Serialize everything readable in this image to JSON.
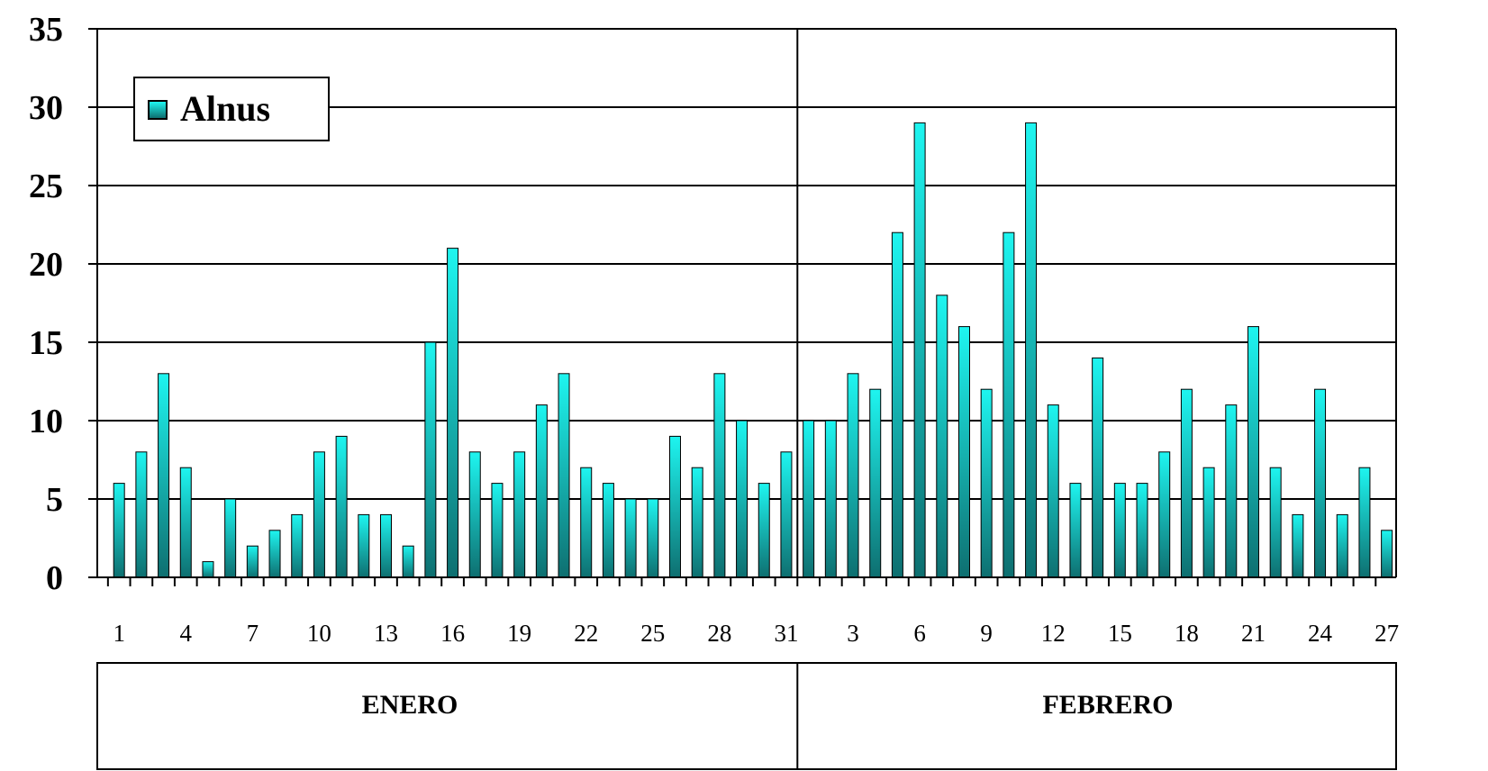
{
  "chart_data": {
    "type": "bar",
    "title": "",
    "xlabel": "",
    "ylabel": "",
    "ylim": [
      0,
      35
    ],
    "yticks": [
      0,
      5,
      10,
      15,
      20,
      25,
      30,
      35
    ],
    "grid": true,
    "legend_position": "top-left",
    "series": [
      {
        "name": "Alnus",
        "color_top": "#1ef5f0",
        "color_bottom": "#0e6f70",
        "values": [
          6,
          8,
          13,
          7,
          1,
          5,
          2,
          3,
          4,
          8,
          9,
          4,
          4,
          2,
          15,
          21,
          8,
          6,
          8,
          11,
          13,
          7,
          6,
          5,
          5,
          9,
          7,
          13,
          10,
          6,
          8,
          10,
          10,
          13,
          12,
          22,
          29,
          18,
          16,
          12,
          22,
          29,
          11,
          6,
          14,
          6,
          6,
          8,
          12,
          7,
          11,
          16,
          7,
          4,
          12,
          4,
          7,
          3
        ]
      }
    ],
    "x_tick_labels": [
      {
        "day_index": 0,
        "label": "1"
      },
      {
        "day_index": 3,
        "label": "4"
      },
      {
        "day_index": 6,
        "label": "7"
      },
      {
        "day_index": 9,
        "label": "10"
      },
      {
        "day_index": 12,
        "label": "13"
      },
      {
        "day_index": 15,
        "label": "16"
      },
      {
        "day_index": 18,
        "label": "19"
      },
      {
        "day_index": 21,
        "label": "22"
      },
      {
        "day_index": 24,
        "label": "25"
      },
      {
        "day_index": 27,
        "label": "28"
      },
      {
        "day_index": 30,
        "label": "31"
      },
      {
        "day_index": 33,
        "label": "3"
      },
      {
        "day_index": 36,
        "label": "6"
      },
      {
        "day_index": 39,
        "label": "9"
      },
      {
        "day_index": 42,
        "label": "12"
      },
      {
        "day_index": 45,
        "label": "15"
      },
      {
        "day_index": 48,
        "label": "18"
      },
      {
        "day_index": 51,
        "label": "21"
      },
      {
        "day_index": 54,
        "label": "24"
      },
      {
        "day_index": 57,
        "label": "27"
      }
    ],
    "months": [
      {
        "label": "ENERO",
        "days": 31
      },
      {
        "label": "FEBRERO",
        "days": 27
      }
    ]
  },
  "legend": {
    "label": "Alnus"
  }
}
